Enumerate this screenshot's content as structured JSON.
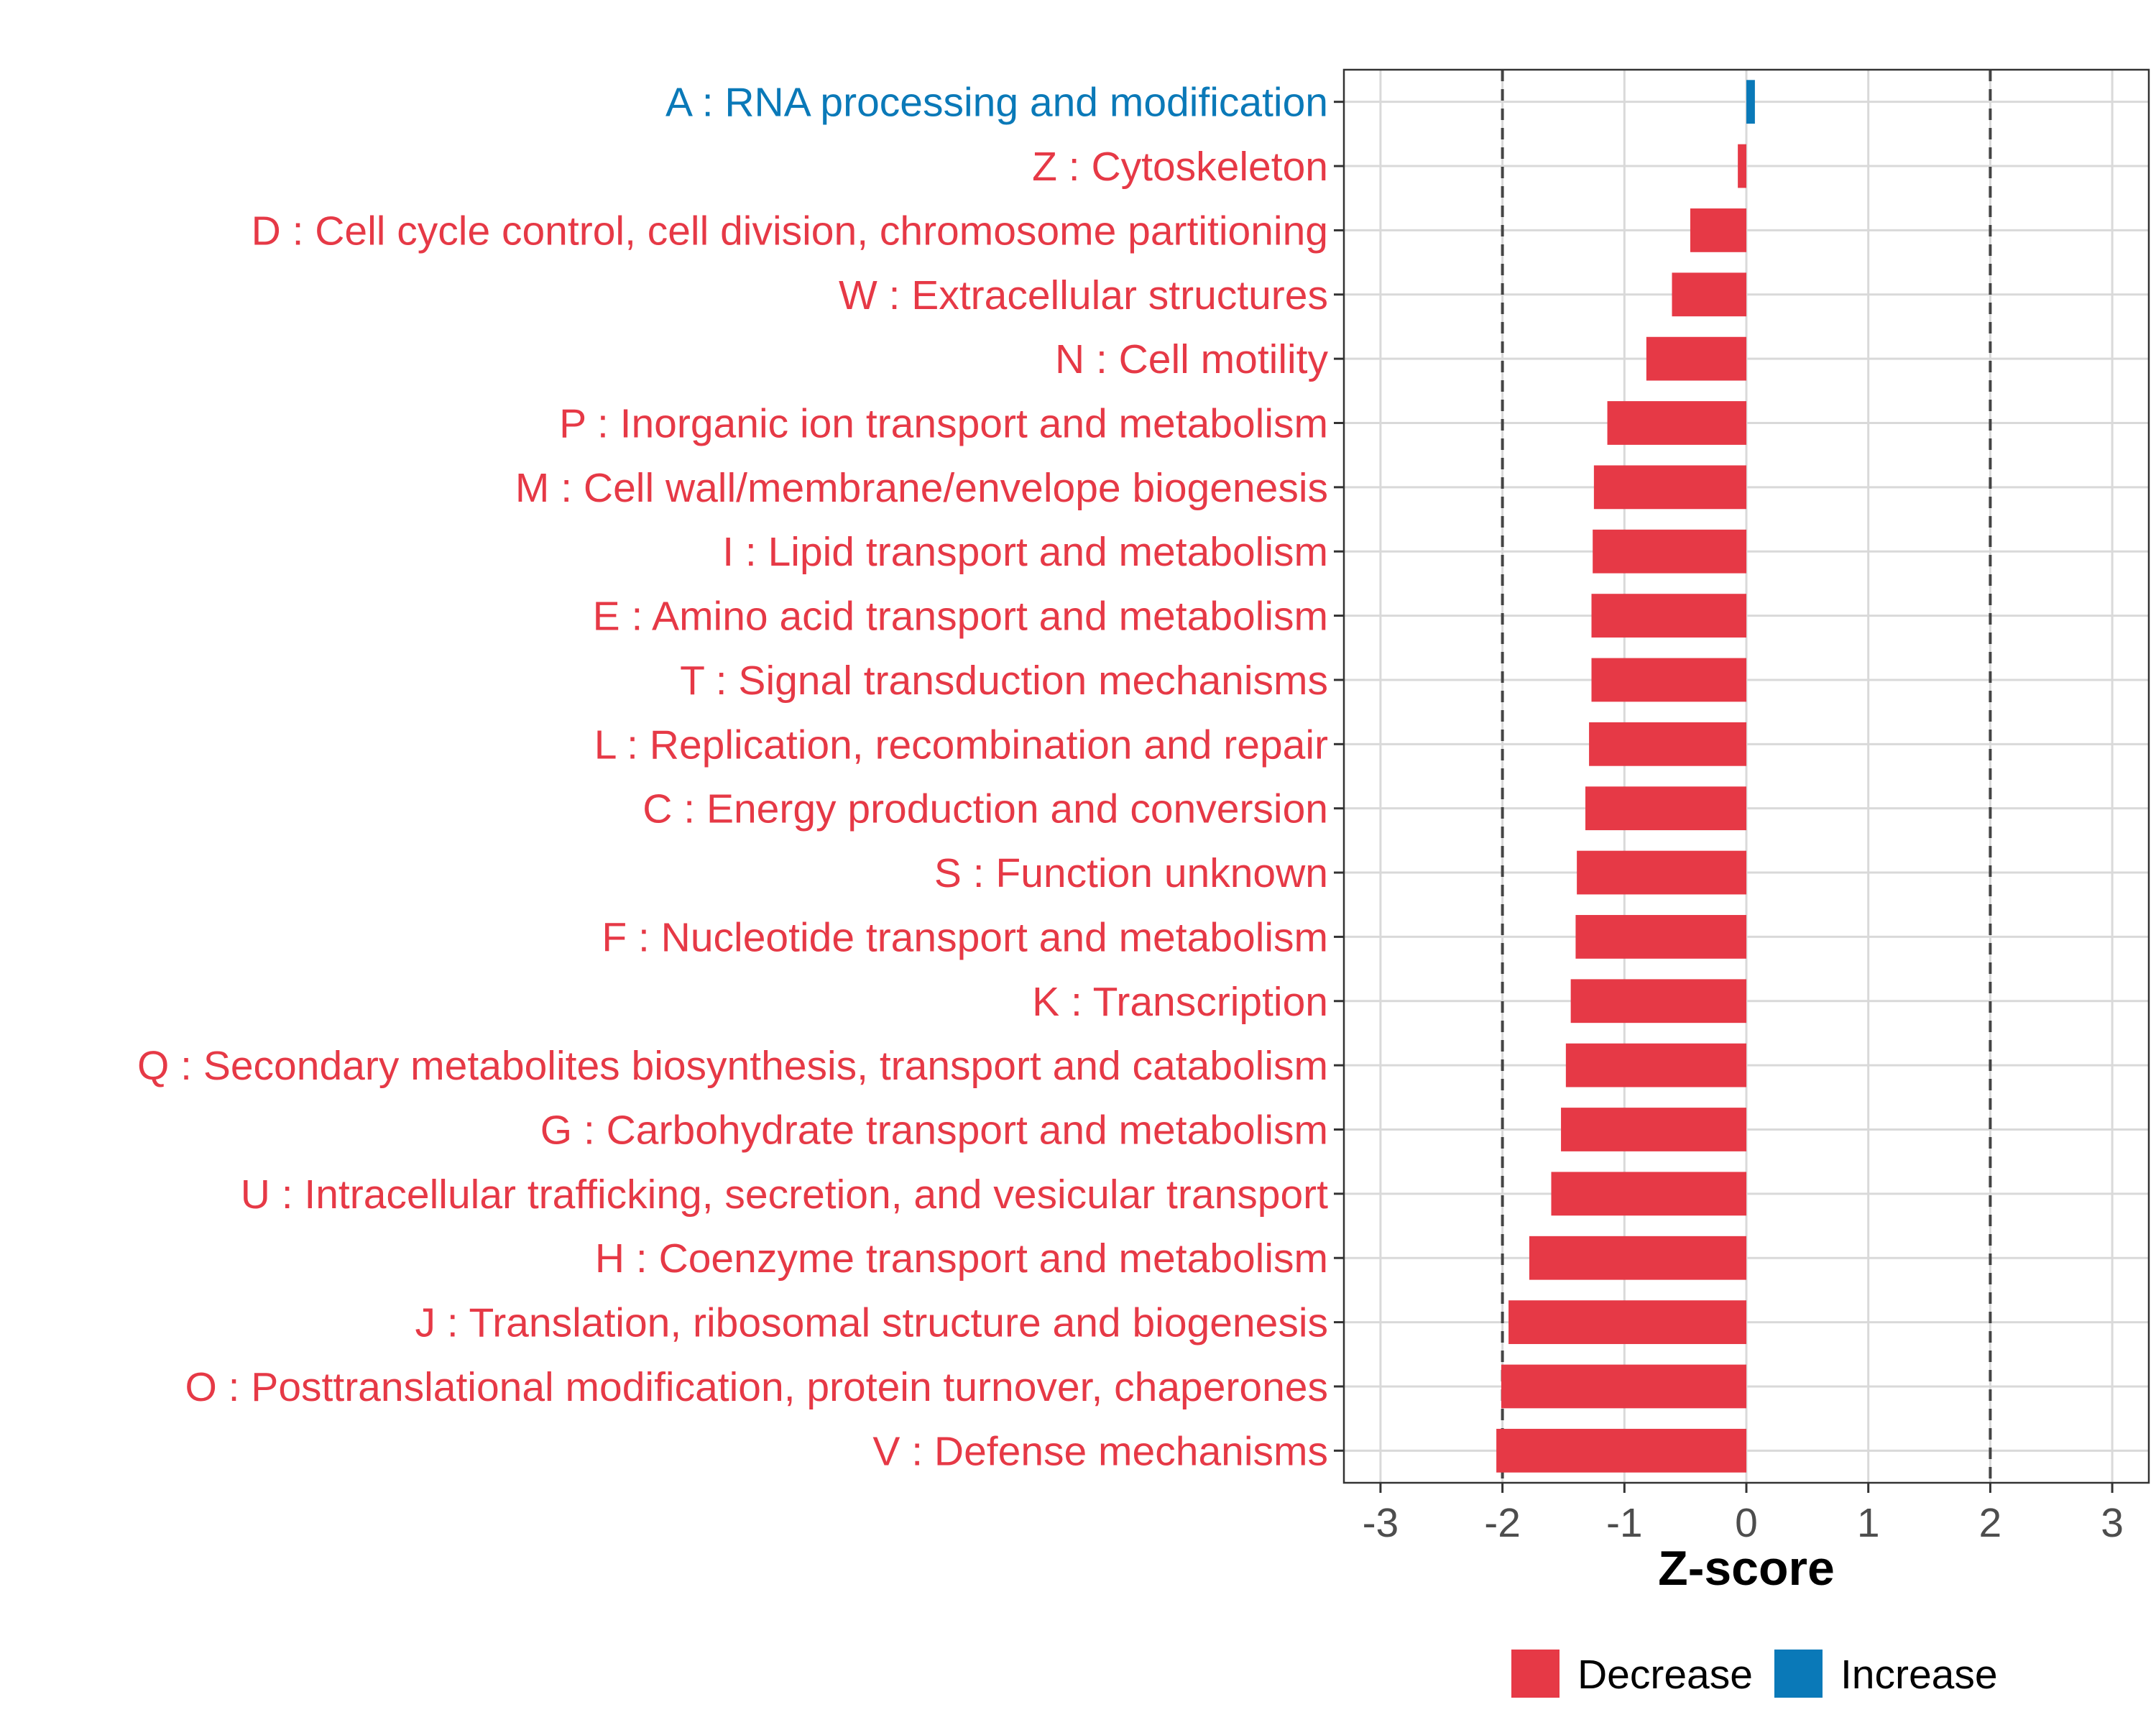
{
  "chart_data": {
    "type": "bar",
    "orientation": "horizontal",
    "xlabel": "Z-score",
    "xlim": [
      -3.3,
      3.3
    ],
    "xticks": [
      -3,
      -2,
      -1,
      0,
      1,
      2,
      3
    ],
    "xtick_labels": [
      "-3",
      "-2",
      "-1",
      "0",
      "1",
      "2",
      "3"
    ],
    "reference_lines": [
      -2,
      2
    ],
    "grid": true,
    "legend_position": "bottom",
    "colors": {
      "Decrease": "#E63946",
      "Increase": "#0A79B8"
    },
    "legend": [
      {
        "label": "Decrease",
        "color": "#E63946"
      },
      {
        "label": "Increase",
        "color": "#0A79B8"
      }
    ],
    "categories": [
      {
        "label": "A : RNA processing and modification",
        "value": 0.07,
        "group": "Increase"
      },
      {
        "label": "Z : Cytoskeleton",
        "value": -0.07,
        "group": "Decrease"
      },
      {
        "label": "D : Cell cycle control, cell division, chromosome partitioning",
        "value": -0.46,
        "group": "Decrease"
      },
      {
        "label": "W : Extracellular structures",
        "value": -0.61,
        "group": "Decrease"
      },
      {
        "label": "N : Cell motility",
        "value": -0.82,
        "group": "Decrease"
      },
      {
        "label": "P : Inorganic ion transport and metabolism",
        "value": -1.14,
        "group": "Decrease"
      },
      {
        "label": "M : Cell wall/membrane/envelope biogenesis",
        "value": -1.25,
        "group": "Decrease"
      },
      {
        "label": "I : Lipid transport and metabolism",
        "value": -1.26,
        "group": "Decrease"
      },
      {
        "label": "E : Amino acid transport and metabolism",
        "value": -1.27,
        "group": "Decrease"
      },
      {
        "label": "T : Signal transduction mechanisms",
        "value": -1.27,
        "group": "Decrease"
      },
      {
        "label": "L : Replication, recombination and repair",
        "value": -1.29,
        "group": "Decrease"
      },
      {
        "label": "C : Energy production and conversion",
        "value": -1.32,
        "group": "Decrease"
      },
      {
        "label": "S : Function unknown",
        "value": -1.39,
        "group": "Decrease"
      },
      {
        "label": "F : Nucleotide transport and metabolism",
        "value": -1.4,
        "group": "Decrease"
      },
      {
        "label": "K : Transcription",
        "value": -1.44,
        "group": "Decrease"
      },
      {
        "label": "Q : Secondary metabolites biosynthesis, transport and catabolism",
        "value": -1.48,
        "group": "Decrease"
      },
      {
        "label": "G : Carbohydrate transport and metabolism",
        "value": -1.52,
        "group": "Decrease"
      },
      {
        "label": "U : Intracellular trafficking, secretion, and vesicular transport",
        "value": -1.6,
        "group": "Decrease"
      },
      {
        "label": "H : Coenzyme transport and metabolism",
        "value": -1.78,
        "group": "Decrease"
      },
      {
        "label": "J : Translation, ribosomal structure and biogenesis",
        "value": -1.95,
        "group": "Decrease"
      },
      {
        "label": "O : Posttranslational modification, protein turnover, chaperones",
        "value": -2.01,
        "group": "Decrease"
      },
      {
        "label": "V : Defense mechanisms",
        "value": -2.05,
        "group": "Decrease"
      }
    ]
  }
}
